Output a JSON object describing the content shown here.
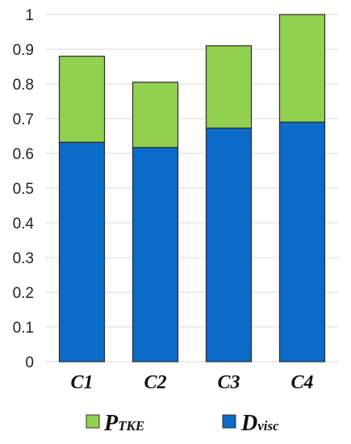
{
  "chart_data": {
    "type": "bar",
    "stacked": true,
    "categories": [
      "C1",
      "C2",
      "C3",
      "C4"
    ],
    "series": [
      {
        "name": "D",
        "subscript": "visc",
        "color": "#0a6bc8",
        "values": [
          0.632,
          0.617,
          0.673,
          0.69
        ]
      },
      {
        "name": "P",
        "subscript": "TKE",
        "color": "#92d050",
        "values": [
          0.248,
          0.188,
          0.237,
          0.31
        ]
      }
    ],
    "ylim": [
      0,
      1
    ],
    "yticks": [
      "0",
      "0.1",
      "0.2",
      "0.3",
      "0.4",
      "0.5",
      "0.6",
      "0.7",
      "0.8",
      "0.9",
      "1"
    ],
    "grid": true,
    "legend": "bottom"
  }
}
